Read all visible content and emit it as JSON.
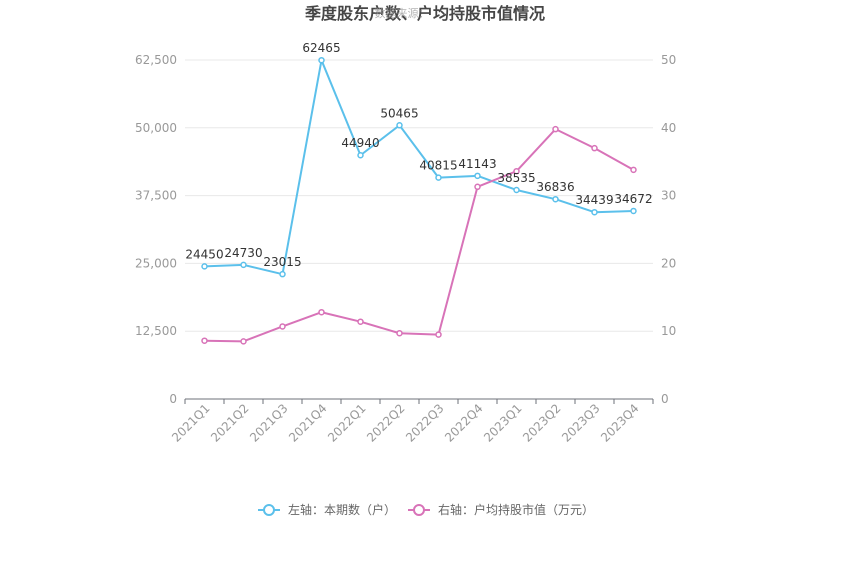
{
  "chart_data": {
    "type": "line",
    "title": "季度股东户数、户均持股市值情况",
    "watermark": "数据来源：",
    "categories": [
      "2021Q1",
      "2021Q2",
      "2021Q3",
      "2021Q4",
      "2022Q1",
      "2022Q2",
      "2022Q3",
      "2022Q4",
      "2023Q1",
      "2023Q2",
      "2023Q3",
      "2023Q4"
    ],
    "y_left": {
      "ticks": [
        "0",
        "12,500",
        "25,000",
        "37,500",
        "50,000",
        "62,500"
      ],
      "min": 0,
      "max": 62500
    },
    "y_right": {
      "ticks": [
        "0",
        "10",
        "20",
        "30",
        "40",
        "50"
      ],
      "min": 0,
      "max": 50
    },
    "series": [
      {
        "name": "左轴：本期数（户）",
        "axis": "left",
        "color": "#5bc0eb",
        "values": [
          24450,
          24730,
          23015,
          62465,
          44940,
          50465,
          40815,
          41143,
          38535,
          36836,
          34439,
          34672
        ],
        "labels": [
          "24450",
          "24730",
          "23015",
          "62465",
          "44940",
          "50465",
          "40815",
          "41143",
          "38535",
          "36836",
          "34439",
          "34672"
        ]
      },
      {
        "name": "右轴：户均持股市值（万元）",
        "axis": "right",
        "color": "#d873b8",
        "values": [
          8.6,
          8.5,
          10.7,
          12.8,
          11.4,
          9.7,
          9.5,
          31.3,
          33.6,
          39.8,
          37.0,
          33.8
        ]
      }
    ],
    "grid": true,
    "legend_position": "bottom-center"
  }
}
